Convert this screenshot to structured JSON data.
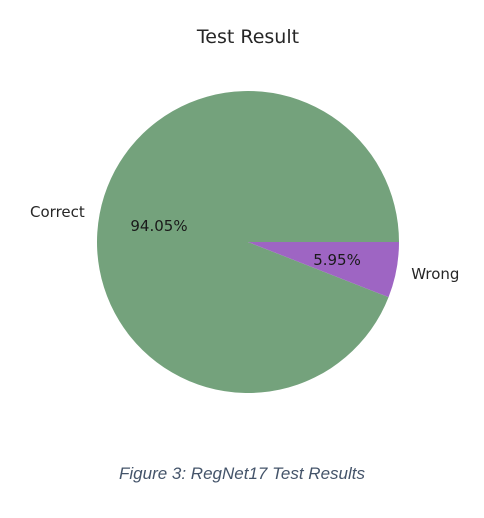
{
  "chart_data": {
    "type": "pie",
    "title": "Test Result",
    "slices": [
      {
        "label": "Correct",
        "value": 94.05,
        "pct_label": "94.05%",
        "color": "#74a27c"
      },
      {
        "label": "Wrong",
        "value": 5.95,
        "pct_label": "5.95%",
        "color": "#9e65c3"
      }
    ],
    "start_angle_deg": 0,
    "direction": "counterclockwise"
  },
  "caption": "Figure 3: RegNet17 Test Results"
}
